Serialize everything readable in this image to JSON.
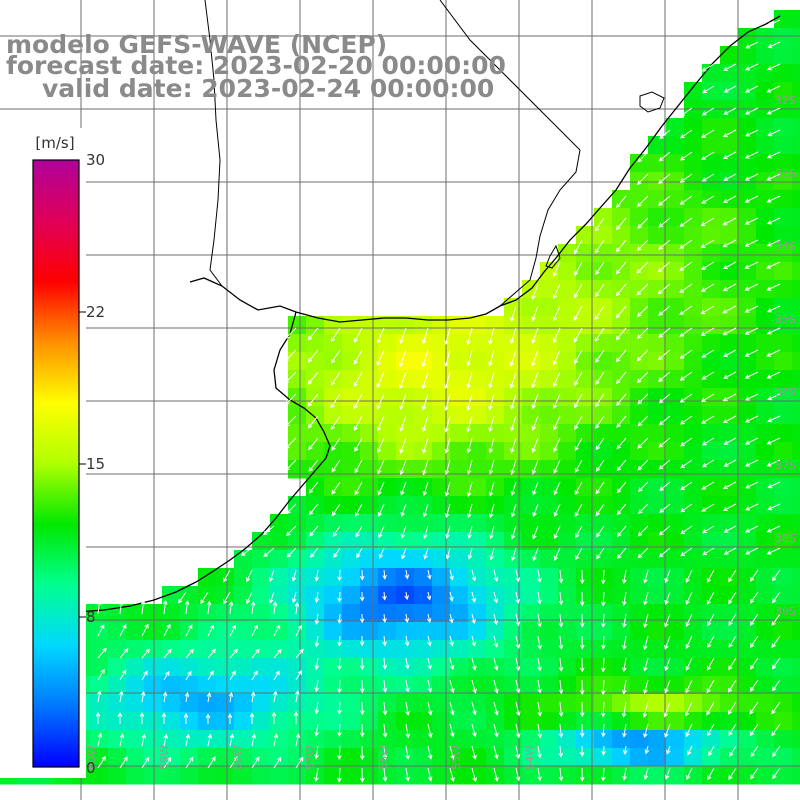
{
  "title": {
    "model": "modelo GEFS-WAVE (NCEP)",
    "forecast": "forecast date: 2023-02-20 00:00:00",
    "valid": "valid date: 2023-02-24 00:00:00"
  },
  "colorbar": {
    "unit": "[m/s]",
    "ticks": [
      "30",
      "22",
      "15",
      "8",
      "0"
    ],
    "colors": [
      "#0000ff",
      "#0077ff",
      "#00d8ff",
      "#00ff90",
      "#00e800",
      "#b0ff00",
      "#ffff00",
      "#ff9000",
      "#ff0000",
      "#e0005a",
      "#b0009a"
    ]
  },
  "colors": {
    "land": "#ffffff",
    "coast": "#000000",
    "grid": "#6e6e6e",
    "arrow": "#ffffff",
    "axis_label": "#9a9a9a"
  },
  "lat_labels": [
    "32S",
    "33S",
    "34S",
    "35S",
    "36S",
    "37S",
    "38S",
    "39S"
  ],
  "lon_labels": [
    "60W",
    "59W",
    "58W",
    "57W",
    "56W",
    "55W",
    "54W"
  ]
}
